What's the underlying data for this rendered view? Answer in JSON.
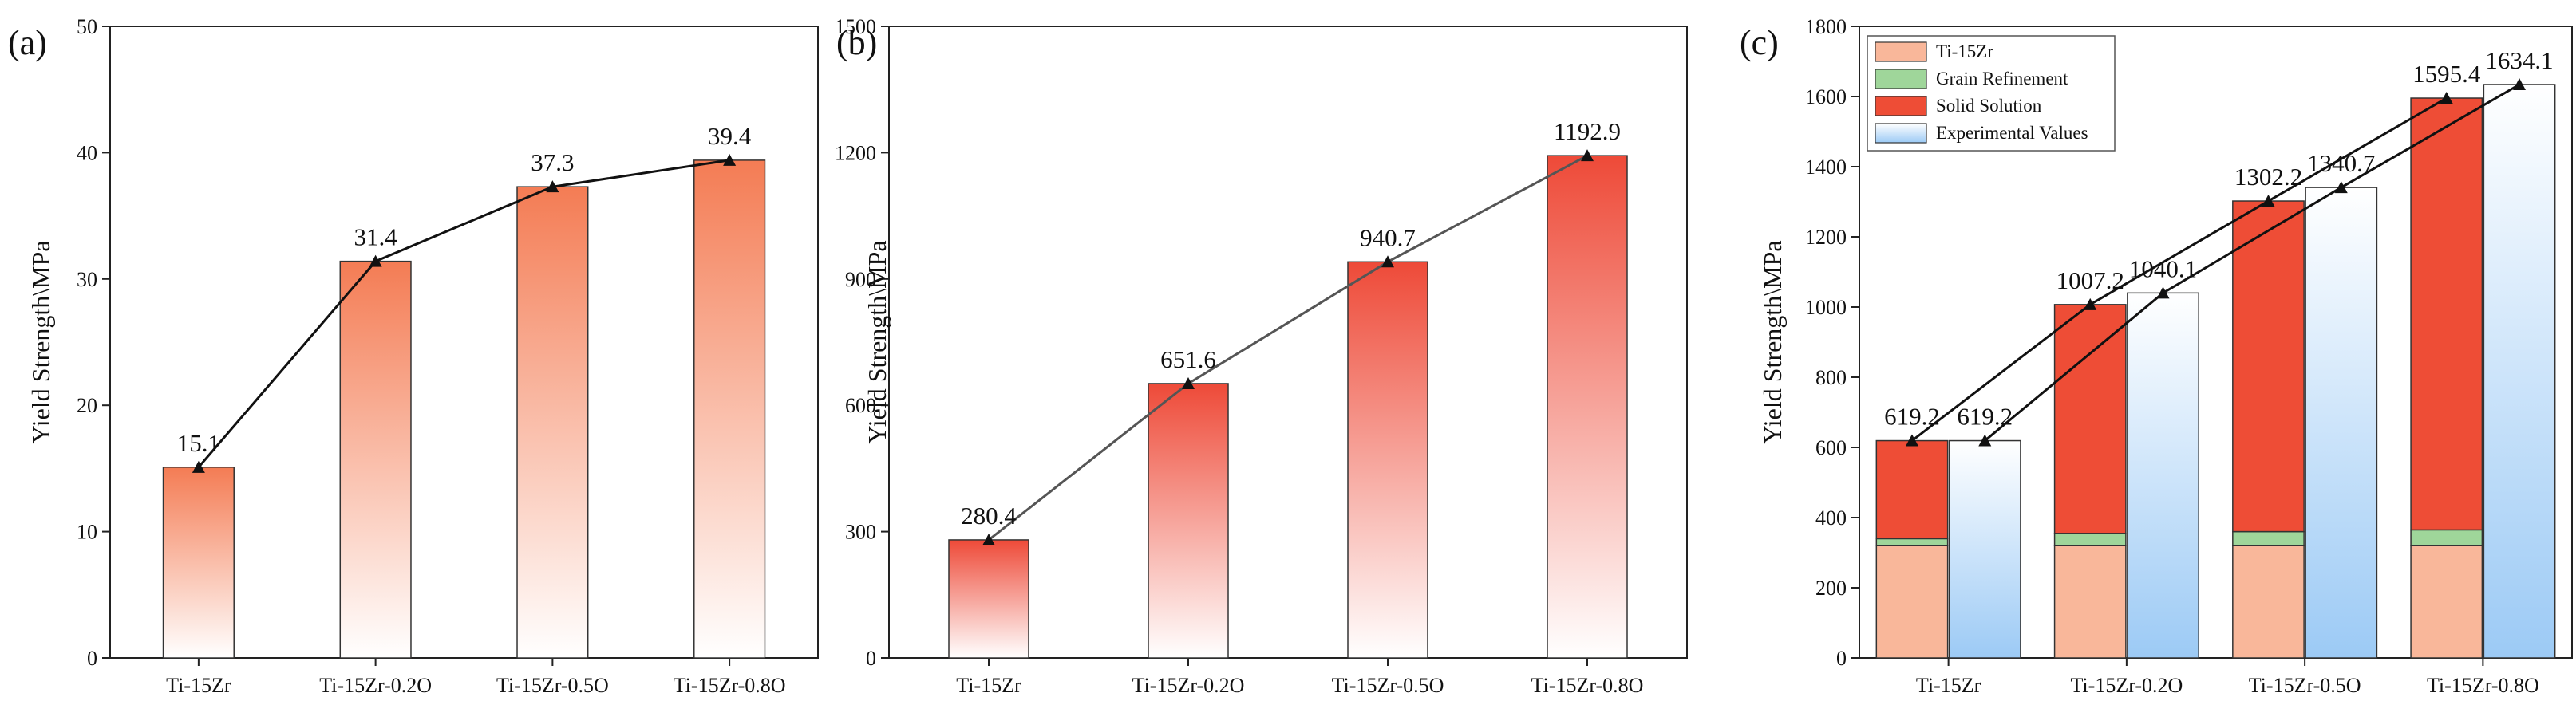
{
  "chart_data": [
    {
      "type": "bar",
      "panel_label": "(a)",
      "ylabel": "Yield Strength\\MPa",
      "ylim": [
        0,
        50
      ],
      "yticks": [
        0,
        10,
        20,
        30,
        40,
        50
      ],
      "categories": [
        "Ti-15Zr",
        "Ti-15Zr-0.2O",
        "Ti-15Zr-0.5O",
        "Ti-15Zr-0.8O"
      ],
      "values": [
        15.1,
        31.4,
        37.3,
        39.4
      ],
      "value_labels": [
        "15.1",
        "31.4",
        "37.3",
        "39.4"
      ],
      "bar_color": "#f47c54",
      "line_color": "#111111",
      "grid": false
    },
    {
      "type": "bar",
      "panel_label": "(b)",
      "ylabel": "Yield Strength\\MPa",
      "ylim": [
        0,
        1500
      ],
      "yticks": [
        0,
        300,
        600,
        900,
        1200,
        1500
      ],
      "categories": [
        "Ti-15Zr",
        "Ti-15Zr-0.2O",
        "Ti-15Zr-0.5O",
        "Ti-15Zr-0.8O"
      ],
      "values": [
        280.4,
        651.6,
        940.7,
        1192.9
      ],
      "value_labels": [
        "280.4",
        "651.6",
        "940.7",
        "1192.9"
      ],
      "bar_color": "#ee4a38",
      "line_color": "#555555",
      "grid": false
    },
    {
      "type": "bar",
      "panel_label": "(c)",
      "ylabel": "Yield Strength\\MPa",
      "ylim": [
        0,
        1800
      ],
      "yticks": [
        0,
        200,
        400,
        600,
        800,
        1000,
        1200,
        1400,
        1600,
        1800
      ],
      "categories": [
        "Ti-15Zr",
        "Ti-15Zr-0.2O",
        "Ti-15Zr-0.5O",
        "Ti-15Zr-0.8O"
      ],
      "stacked_series": [
        {
          "name": "Ti-15Zr",
          "color": "#f9b79a",
          "values": [
            320,
            320,
            320,
            320
          ]
        },
        {
          "name": "Grain Refinement",
          "color": "#9fd69a",
          "values": [
            20,
            35,
            40,
            45
          ]
        },
        {
          "name": "Solid Solution",
          "color": "#ee4d36",
          "values": [
            279.2,
            652.2,
            942.2,
            1230.4
          ]
        }
      ],
      "experimental": {
        "name": "Experimental Values",
        "color": "#a9d1f7",
        "values": [
          619.2,
          1040.1,
          1340.7,
          1634.1
        ]
      },
      "calculated_labels": [
        "619.2",
        "1007.2",
        "1302.2",
        "1595.4"
      ],
      "experimental_labels": [
        "619.2",
        "1040.1",
        "1340.7",
        "1634.1"
      ],
      "legend_placement": "top-left",
      "grid": false
    }
  ]
}
